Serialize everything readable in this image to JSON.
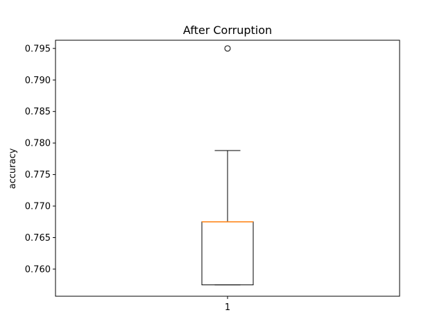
{
  "chart_data": {
    "type": "box",
    "title": "After Corruption",
    "xlabel": "",
    "ylabel": "accuracy",
    "categories": [
      "1"
    ],
    "ylim": [
      0.7557,
      0.7963
    ],
    "yticks": [
      "0.760",
      "0.765",
      "0.770",
      "0.775",
      "0.780",
      "0.785",
      "0.790",
      "0.795"
    ],
    "grid": false,
    "boxes": [
      {
        "category": "1",
        "whisker_low": 0.7575,
        "q1": 0.7575,
        "median": 0.7675,
        "q3": 0.7675,
        "whisker_high": 0.7788,
        "outliers": [
          0.795
        ]
      }
    ],
    "colors": {
      "box": "#000000",
      "median": "#ff7f0e",
      "axes": "#000000"
    }
  }
}
